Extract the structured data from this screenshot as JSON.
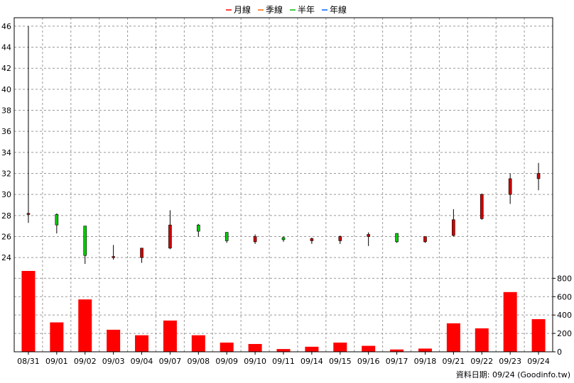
{
  "chart_data": {
    "type": "candlestick+bar",
    "legend": [
      {
        "label": "月線",
        "color": "#ff0000"
      },
      {
        "label": "季線",
        "color": "#ff6600"
      },
      {
        "label": "半年",
        "color": "#00bb00"
      },
      {
        "label": "年線",
        "color": "#0066ff"
      }
    ],
    "dates": [
      "08/31",
      "09/01",
      "09/02",
      "09/03",
      "09/04",
      "09/07",
      "09/08",
      "09/09",
      "09/10",
      "09/11",
      "09/14",
      "09/15",
      "09/16",
      "09/17",
      "09/18",
      "09/21",
      "09/22",
      "09/23",
      "09/24"
    ],
    "price": {
      "ylim": [
        23,
        46.8
      ],
      "ticks": [
        24,
        26,
        28,
        30,
        32,
        34,
        36,
        38,
        40,
        42,
        44,
        46
      ],
      "ohlc": [
        {
          "open": 28.2,
          "high": 46.0,
          "low": 27.3,
          "close": 28.2
        },
        {
          "open": 28.1,
          "high": 28.2,
          "low": 26.3,
          "close": 27.1
        },
        {
          "open": 27.0,
          "high": 27.0,
          "low": 23.4,
          "close": 24.2
        },
        {
          "open": 24.0,
          "high": 25.2,
          "low": 23.8,
          "close": 24.1
        },
        {
          "open": 24.0,
          "high": 24.9,
          "low": 23.5,
          "close": 24.9
        },
        {
          "open": 24.9,
          "high": 28.5,
          "low": 24.8,
          "close": 27.1
        },
        {
          "open": 27.1,
          "high": 27.2,
          "low": 26.0,
          "close": 26.5
        },
        {
          "open": 26.4,
          "high": 26.4,
          "low": 25.4,
          "close": 25.6
        },
        {
          "open": 25.5,
          "high": 26.2,
          "low": 25.3,
          "close": 26.0
        },
        {
          "open": 25.9,
          "high": 26.0,
          "low": 25.5,
          "close": 25.7
        },
        {
          "open": 25.6,
          "high": 25.9,
          "low": 25.3,
          "close": 25.8
        },
        {
          "open": 25.6,
          "high": 26.1,
          "low": 25.3,
          "close": 26.0
        },
        {
          "open": 26.0,
          "high": 26.4,
          "low": 25.1,
          "close": 26.2
        },
        {
          "open": 26.3,
          "high": 26.3,
          "low": 25.4,
          "close": 25.5
        },
        {
          "open": 25.5,
          "high": 26.0,
          "low": 25.4,
          "close": 26.0
        },
        {
          "open": 26.1,
          "high": 28.6,
          "low": 26.0,
          "close": 27.6
        },
        {
          "open": 27.7,
          "high": 30.1,
          "low": 27.6,
          "close": 30.0
        },
        {
          "open": 30.0,
          "high": 32.0,
          "low": 29.1,
          "close": 31.5
        },
        {
          "open": 31.5,
          "high": 33.0,
          "low": 30.4,
          "close": 32.0
        }
      ]
    },
    "volume": {
      "ylim": [
        0,
        880
      ],
      "ticks": [
        0,
        200,
        400,
        600,
        800
      ],
      "values": [
        880,
        320,
        570,
        240,
        180,
        340,
        180,
        100,
        85,
        30,
        55,
        100,
        65,
        25,
        35,
        310,
        255,
        650,
        355
      ]
    },
    "colors": {
      "up": "#cc0000",
      "down": "#00cc00",
      "volume": "#ff0000",
      "grid": "#999999"
    },
    "source": "資料日期: 09/24  (Goodinfo.tw)"
  }
}
